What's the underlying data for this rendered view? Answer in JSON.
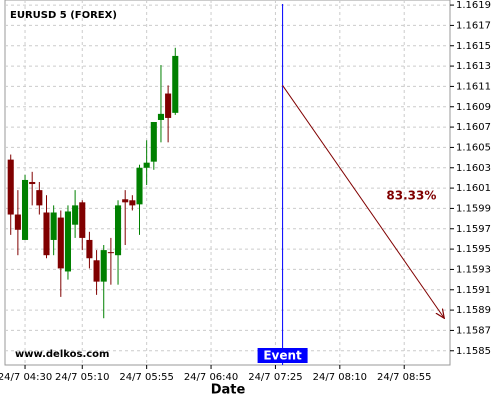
{
  "chart_data": {
    "type": "candlestick",
    "title": "EURUSD 5 (FOREX)",
    "watermark": "www.delkos.com",
    "xlabel": "Date",
    "x": [
      260,
      265,
      270,
      275,
      280,
      285,
      290,
      295,
      300,
      305,
      310,
      315,
      320,
      325,
      330,
      335,
      340,
      345,
      350,
      355,
      360,
      365,
      370,
      375
    ],
    "open": [
      1.16038,
      1.15984,
      1.15959,
      1.16016,
      1.16008,
      1.15986,
      1.15959,
      1.15981,
      1.15928,
      1.15974,
      1.15996,
      1.15959,
      1.15939,
      1.15918,
      1.15947,
      1.15944,
      1.15999,
      1.15998,
      1.15994,
      1.1603,
      1.16036,
      1.16077,
      1.16103,
      1.16084
    ],
    "high": [
      1.16043,
      1.16008,
      1.16023,
      1.16026,
      1.16016,
      1.16003,
      1.15993,
      1.15988,
      1.15993,
      1.16008,
      1.15998,
      1.15967,
      1.15949,
      1.15954,
      1.15961,
      1.15998,
      1.16008,
      1.16003,
      1.16033,
      1.16057,
      1.16075,
      1.16131,
      1.16111,
      1.16148
    ],
    "low": [
      1.15964,
      1.15944,
      1.15959,
      1.15993,
      1.15984,
      1.15941,
      1.15944,
      1.15903,
      1.1592,
      1.15961,
      1.15949,
      1.15931,
      1.15905,
      1.15882,
      1.15915,
      1.15915,
      1.15954,
      1.15988,
      1.15964,
      1.16013,
      1.16028,
      1.16055,
      1.16055,
      1.16082
    ],
    "close": [
      1.15984,
      1.15969,
      1.16018,
      1.16014,
      1.15993,
      1.15944,
      1.15986,
      1.15931,
      1.15987,
      1.15993,
      1.15961,
      1.15941,
      1.15918,
      1.15949,
      1.15946,
      1.15993,
      1.15996,
      1.15993,
      1.1603,
      1.16035,
      1.16075,
      1.16083,
      1.16079,
      1.1614
    ],
    "up_color": "#008000",
    "down_color": "#800000",
    "xlim": [
      256,
      567
    ],
    "ylim": [
      1.15836,
      1.16195
    ],
    "xticks": [
      {
        "value": 270,
        "label": "24/7 04:30"
      },
      {
        "value": 310,
        "label": "24/7 05:10"
      },
      {
        "value": 355,
        "label": "24/7 05:55"
      },
      {
        "value": 400,
        "label": "24/7 06:40"
      },
      {
        "value": 445,
        "label": "24/7 07:25"
      },
      {
        "value": 490,
        "label": "24/7 08:10"
      },
      {
        "value": 535,
        "label": "24/7 08:55"
      }
    ],
    "yticks": [
      1.1585,
      1.1587,
      1.1589,
      1.1591,
      1.1593,
      1.1595,
      1.1597,
      1.1599,
      1.1601,
      1.1603,
      1.1605,
      1.1607,
      1.1609,
      1.1611,
      1.1613,
      1.1615,
      1.1617,
      1.1619
    ],
    "grid": true,
    "event": {
      "x": 450,
      "label": "Event",
      "color": "#0000ff"
    },
    "annotation": {
      "text": "83.33%",
      "x": [
        450,
        563
      ],
      "y": [
        1.16111,
        1.15882
      ],
      "color": "#800000"
    }
  }
}
